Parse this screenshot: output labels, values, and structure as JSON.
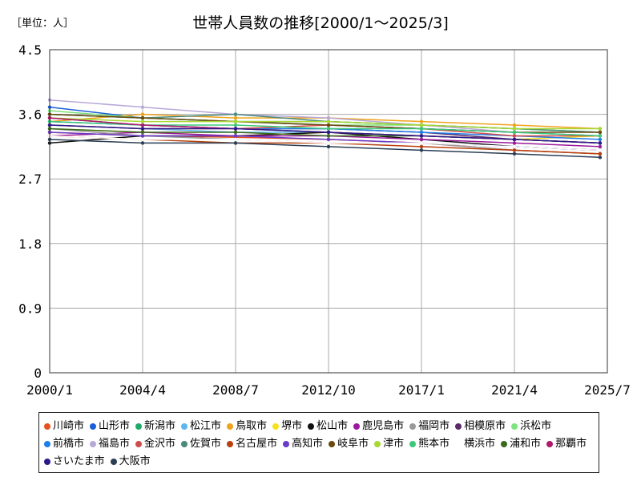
{
  "chart_data": {
    "type": "line",
    "title": "世帯人員数の推移[2000/1～2025/3]",
    "unit_label": "［単位：人］",
    "xlabel": "",
    "ylabel": "",
    "ylim": [
      0,
      4.5
    ],
    "y_ticks": [
      0,
      0.9,
      1.8,
      2.7,
      3.6,
      4.5
    ],
    "y_tick_labels": [
      "0",
      "0.9",
      "1.8",
      "2.7",
      "3.6",
      "4.5"
    ],
    "x_ticks": [
      "2000/1",
      "2004/4",
      "2008/7",
      "2012/10",
      "2017/1",
      "2021/4",
      "2025/7"
    ],
    "x": [
      "2000/1",
      "2004/4",
      "2008/7",
      "2012/10",
      "2017/1",
      "2021/4",
      "2025/3"
    ],
    "grid": true,
    "legend_position": "bottom",
    "series": [
      {
        "name": "川崎市",
        "color": "#e8501e",
        "values": [
          3.35,
          3.3,
          3.28,
          3.25,
          3.2,
          3.1,
          3.05
        ]
      },
      {
        "name": "山形市",
        "color": "#1a5fd6",
        "values": [
          3.7,
          3.55,
          3.5,
          3.45,
          3.4,
          3.35,
          3.3
        ]
      },
      {
        "name": "新潟市",
        "color": "#1faa6b",
        "values": [
          3.6,
          3.55,
          3.5,
          3.5,
          3.45,
          3.4,
          3.35
        ]
      },
      {
        "name": "松江市",
        "color": "#5eb6ee",
        "values": [
          3.45,
          3.4,
          3.35,
          3.35,
          3.3,
          3.25,
          3.2
        ]
      },
      {
        "name": "鳥取市",
        "color": "#f0a21c",
        "values": [
          3.5,
          3.6,
          3.55,
          3.55,
          3.5,
          3.45,
          3.4
        ]
      },
      {
        "name": "堺市",
        "color": "#f5e21a",
        "values": [
          3.4,
          3.35,
          3.3,
          3.35,
          3.3,
          3.25,
          3.3
        ]
      },
      {
        "name": "松山市",
        "color": "#111111",
        "values": [
          3.2,
          3.3,
          3.3,
          3.35,
          3.25,
          3.15,
          3.1
        ]
      },
      {
        "name": "鹿児島市",
        "color": "#9b1a9b",
        "values": [
          3.3,
          3.35,
          3.3,
          3.3,
          3.25,
          3.2,
          3.15
        ]
      },
      {
        "name": "福岡市",
        "color": "#999999",
        "values": [
          3.4,
          3.3,
          3.25,
          3.2,
          3.2,
          3.1,
          3.05
        ]
      },
      {
        "name": "相模原市",
        "color": "#5a2a6a",
        "values": [
          3.55,
          3.45,
          3.4,
          3.4,
          3.35,
          3.25,
          3.2
        ]
      },
      {
        "name": "浜松市",
        "color": "#7ee27e",
        "values": [
          3.65,
          3.55,
          3.5,
          3.45,
          3.45,
          3.4,
          3.35
        ]
      },
      {
        "name": "前橋市",
        "color": "#1e7ee8",
        "values": [
          3.5,
          3.45,
          3.4,
          3.4,
          3.35,
          3.3,
          3.25
        ]
      },
      {
        "name": "福島市",
        "color": "#b8a8d8",
        "values": [
          3.8,
          3.7,
          3.6,
          3.55,
          3.45,
          3.35,
          3.3
        ]
      },
      {
        "name": "金沢市",
        "color": "#d24b4b",
        "values": [
          3.45,
          3.4,
          3.4,
          3.45,
          3.4,
          3.3,
          3.3
        ]
      },
      {
        "name": "佐賀市",
        "color": "#4a8a7a",
        "values": [
          3.6,
          3.55,
          3.6,
          3.5,
          3.45,
          3.4,
          3.35
        ]
      },
      {
        "name": "名古屋市",
        "color": "#b8400e",
        "values": [
          3.3,
          3.25,
          3.2,
          3.2,
          3.15,
          3.1,
          3.05
        ]
      },
      {
        "name": "高知市",
        "color": "#6a3ac8",
        "values": [
          3.35,
          3.3,
          3.3,
          3.25,
          3.2,
          3.15,
          3.1
        ]
      },
      {
        "name": "岐阜市",
        "color": "#6b4a10",
        "values": [
          3.6,
          3.55,
          3.5,
          3.45,
          3.4,
          3.35,
          3.35
        ]
      },
      {
        "name": "津市",
        "color": "#a8d832",
        "values": [
          3.55,
          3.5,
          3.5,
          3.5,
          3.45,
          3.4,
          3.4
        ]
      },
      {
        "name": "熊本市",
        "color": "#3cc878",
        "values": [
          3.5,
          3.45,
          3.45,
          3.4,
          3.4,
          3.35,
          3.3
        ]
      },
      {
        "name": "横浜市",
        "color": "#ffffff",
        "values": [
          3.3,
          3.25,
          3.25,
          3.2,
          3.2,
          3.15,
          3.1
        ]
      },
      {
        "name": "浦和市",
        "color": "#3a6a1e",
        "values": [
          3.4,
          3.35,
          3.35,
          3.3,
          3.3,
          3.25,
          3.2
        ]
      },
      {
        "name": "那覇市",
        "color": "#b0186a",
        "values": [
          3.55,
          3.45,
          3.4,
          3.35,
          3.3,
          3.25,
          3.2
        ]
      },
      {
        "name": "さいたま市",
        "color": "#2a1a8a",
        "values": [
          3.45,
          3.4,
          3.4,
          3.35,
          3.3,
          3.25,
          3.2
        ]
      },
      {
        "name": "大阪市",
        "color": "#2a3e55",
        "values": [
          3.25,
          3.2,
          3.2,
          3.15,
          3.1,
          3.05,
          3.0
        ]
      }
    ]
  }
}
